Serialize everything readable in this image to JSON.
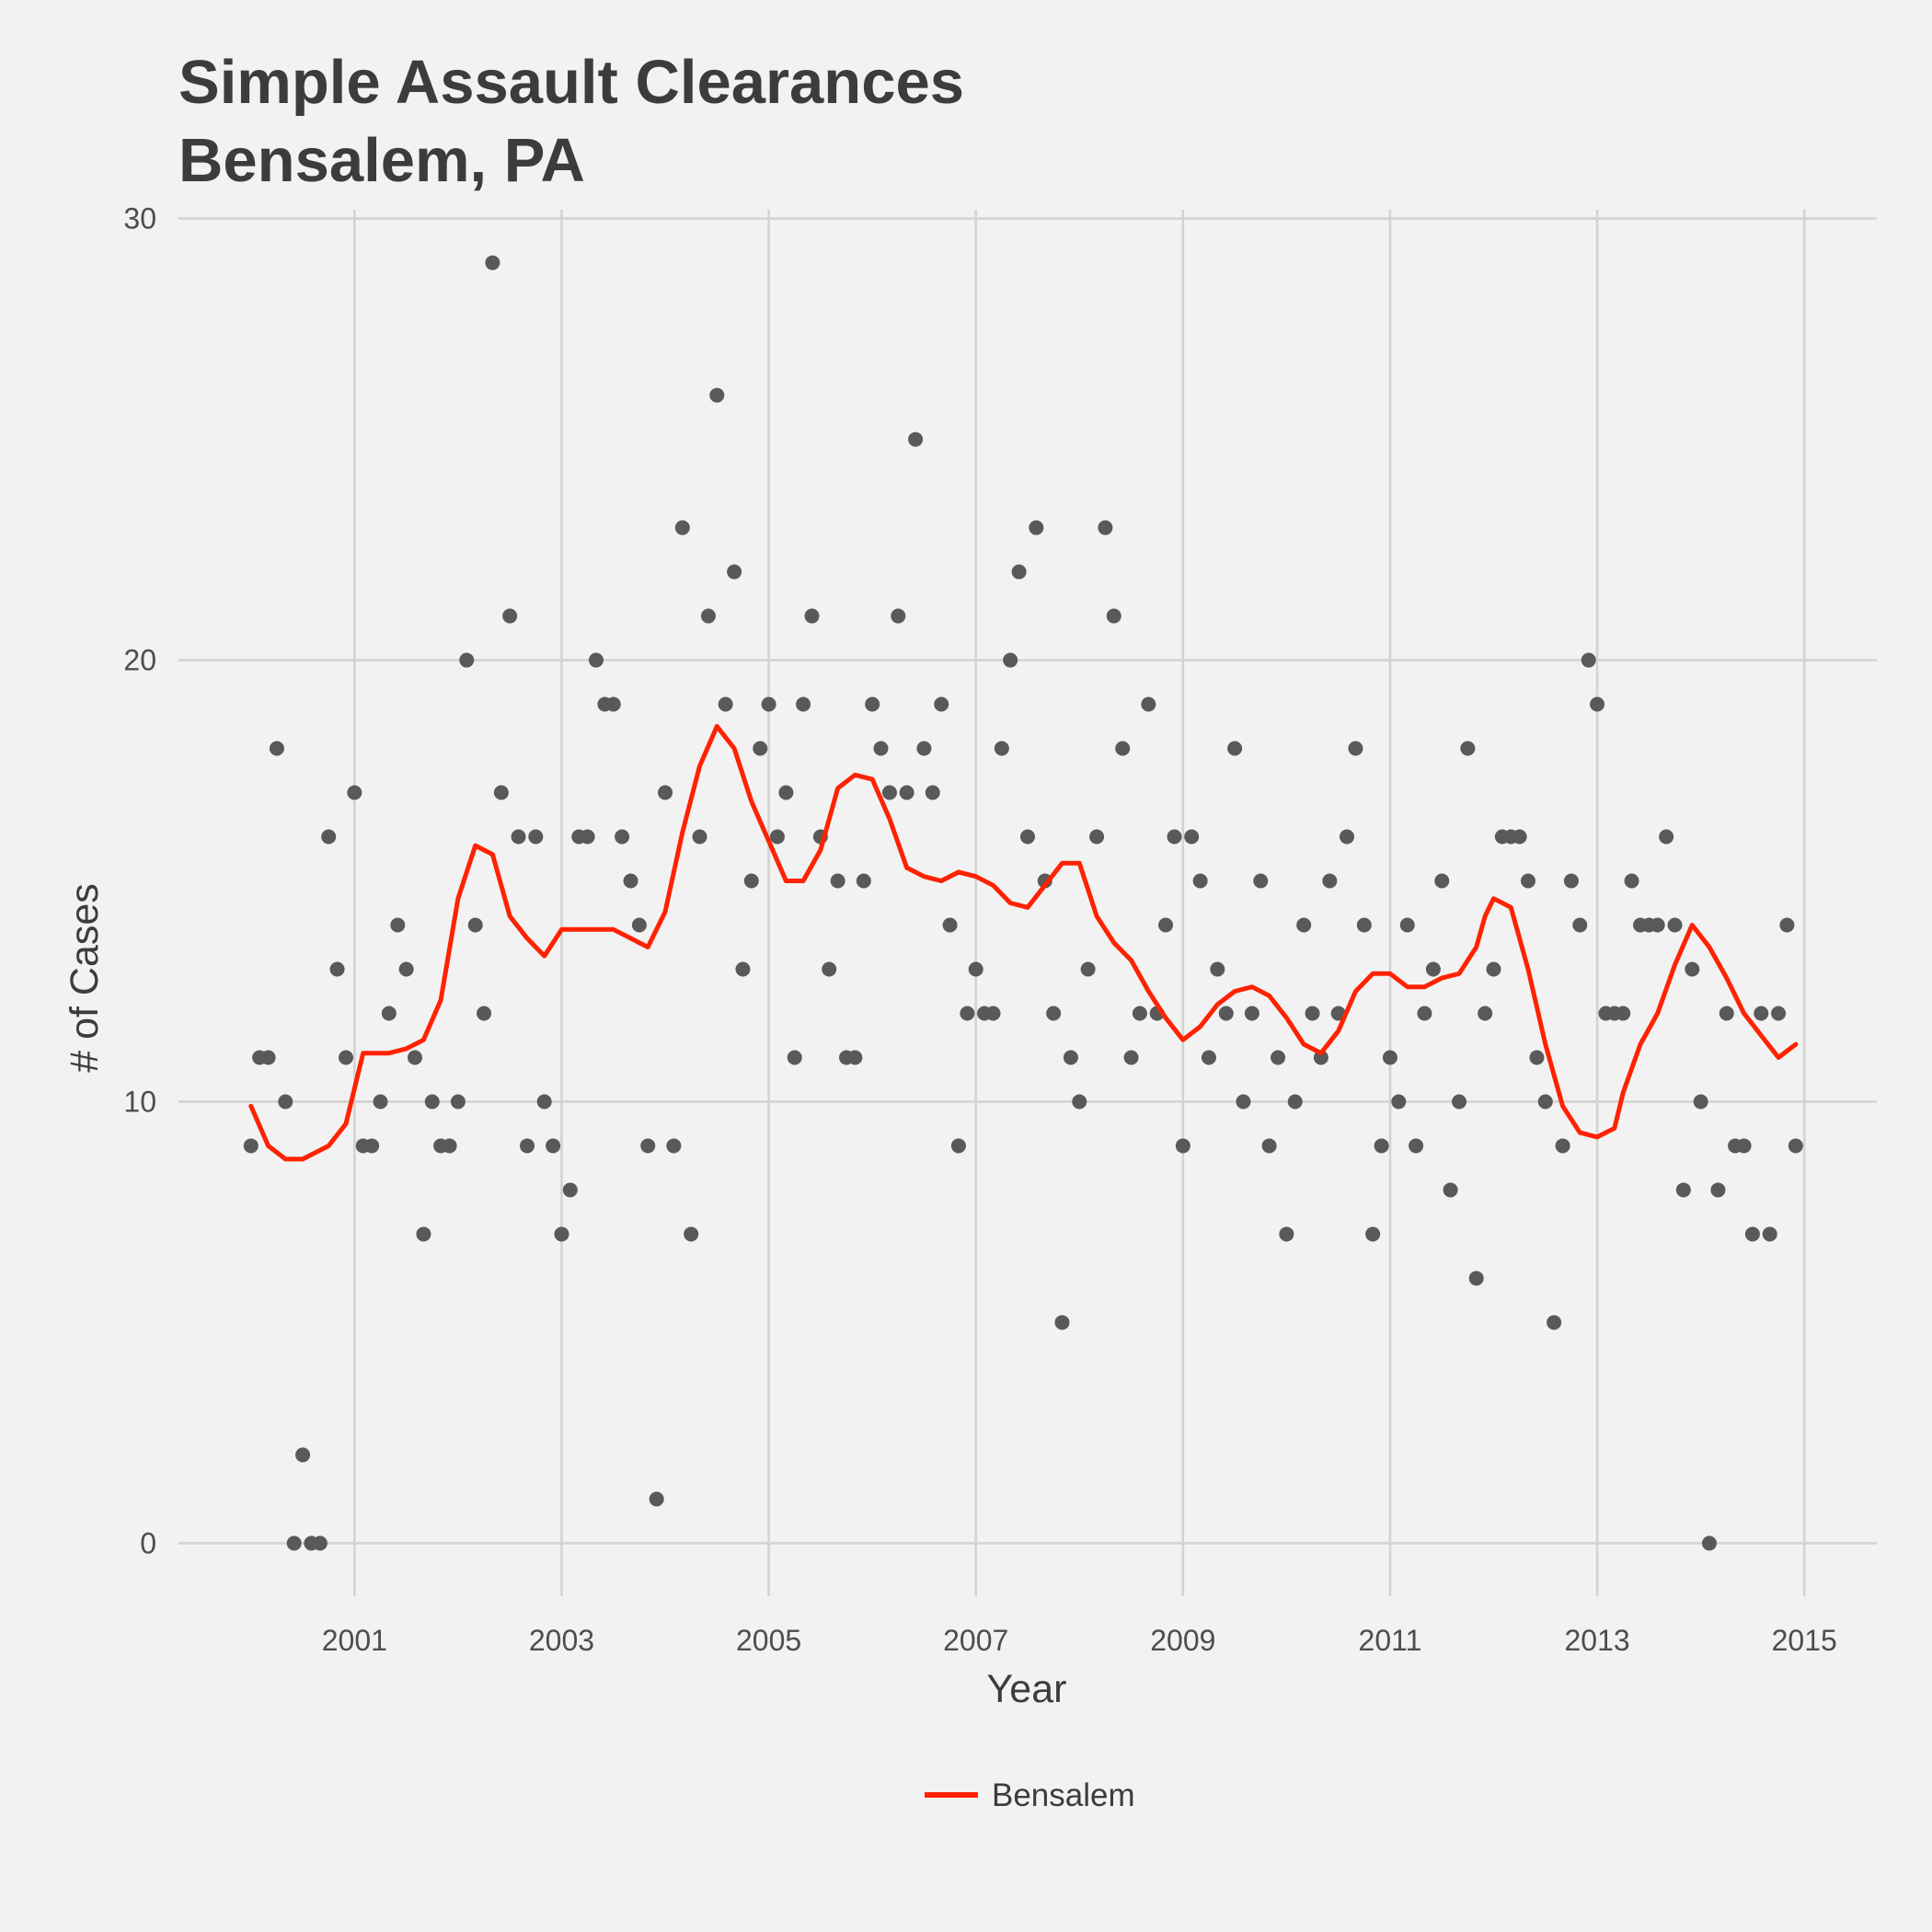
{
  "chart_data": {
    "type": "scatter",
    "title": [
      "Simple Assault Clearances",
      "Bensalem, PA"
    ],
    "xlabel": "Year",
    "ylabel": "# of Cases",
    "xlim": [
      1999.3,
      2015.7
    ],
    "ylim": [
      -1.2,
      30.2
    ],
    "x_ticks": [
      2001,
      2003,
      2005,
      2007,
      2009,
      2011,
      2013,
      2015
    ],
    "y_ticks": [
      0,
      10,
      20,
      30
    ],
    "grid": true,
    "legend": {
      "position": "bottom",
      "entries": [
        "Bensalem"
      ]
    },
    "colors": {
      "points": "#595959",
      "line": "#ff2200",
      "grid": "#d3d3d3",
      "background": "#f2f2f2",
      "text": "#3c3c3c"
    },
    "points": {
      "x": [
        2000.0,
        2000.083,
        2000.167,
        2000.25,
        2000.333,
        2000.417,
        2000.5,
        2000.583,
        2000.667,
        2000.75,
        2000.833,
        2000.917,
        2001.0,
        2001.083,
        2001.167,
        2001.25,
        2001.333,
        2001.417,
        2001.5,
        2001.583,
        2001.667,
        2001.75,
        2001.833,
        2001.917,
        2002.0,
        2002.083,
        2002.167,
        2002.25,
        2002.333,
        2002.417,
        2002.5,
        2002.583,
        2002.667,
        2002.75,
        2002.833,
        2002.917,
        2003.0,
        2003.083,
        2003.167,
        2003.25,
        2003.333,
        2003.417,
        2003.5,
        2003.583,
        2003.667,
        2003.75,
        2003.833,
        2003.917,
        2004.0,
        2004.083,
        2004.167,
        2004.25,
        2004.333,
        2004.417,
        2004.5,
        2004.583,
        2004.667,
        2004.75,
        2004.833,
        2004.917,
        2005.0,
        2005.083,
        2005.167,
        2005.25,
        2005.333,
        2005.417,
        2005.5,
        2005.583,
        2005.667,
        2005.75,
        2005.833,
        2005.917,
        2006.0,
        2006.083,
        2006.167,
        2006.25,
        2006.333,
        2006.417,
        2006.5,
        2006.583,
        2006.667,
        2006.75,
        2006.833,
        2006.917,
        2007.0,
        2007.083,
        2007.167,
        2007.25,
        2007.333,
        2007.417,
        2007.5,
        2007.583,
        2007.667,
        2007.75,
        2007.833,
        2007.917,
        2008.0,
        2008.083,
        2008.167,
        2008.25,
        2008.333,
        2008.417,
        2008.5,
        2008.583,
        2008.667,
        2008.75,
        2008.833,
        2008.917,
        2009.0,
        2009.083,
        2009.167,
        2009.25,
        2009.333,
        2009.417,
        2009.5,
        2009.583,
        2009.667,
        2009.75,
        2009.833,
        2009.917,
        2010.0,
        2010.083,
        2010.167,
        2010.25,
        2010.333,
        2010.417,
        2010.5,
        2010.583,
        2010.667,
        2010.75,
        2010.833,
        2010.917,
        2011.0,
        2011.083,
        2011.167,
        2011.25,
        2011.333,
        2011.417,
        2011.5,
        2011.583,
        2011.667,
        2011.75,
        2011.833,
        2011.917,
        2012.0,
        2012.083,
        2012.167,
        2012.25,
        2012.333,
        2012.417,
        2012.5,
        2012.583,
        2012.667,
        2012.75,
        2012.833,
        2012.917,
        2013.0,
        2013.083,
        2013.167,
        2013.25,
        2013.333,
        2013.417,
        2013.5,
        2013.583,
        2013.667,
        2013.75,
        2013.833,
        2013.917,
        2014.0,
        2014.083,
        2014.167,
        2014.25,
        2014.333,
        2014.417,
        2014.5,
        2014.583,
        2014.667,
        2014.75,
        2014.833,
        2014.917
      ],
      "y": [
        9,
        11,
        11,
        18,
        10,
        0,
        2,
        0,
        0,
        16,
        13,
        11,
        17,
        9,
        9,
        10,
        12,
        14,
        13,
        11,
        7,
        10,
        9,
        9,
        10,
        20,
        14,
        12,
        29,
        17,
        21,
        16,
        9,
        16,
        10,
        9,
        7,
        8,
        16,
        16,
        20,
        19,
        19,
        16,
        15,
        14,
        9,
        1,
        17,
        9,
        23,
        7,
        16,
        21,
        26,
        19,
        22,
        13,
        15,
        18,
        19,
        16,
        17,
        11,
        19,
        21,
        16,
        13,
        15,
        11,
        11,
        15,
        19,
        18,
        17,
        21,
        17,
        25,
        18,
        17,
        19,
        14,
        9,
        12,
        13,
        12,
        12,
        18,
        20,
        22,
        16,
        23,
        15,
        12,
        5,
        11,
        10,
        13,
        16,
        23,
        21,
        18,
        11,
        12,
        19,
        12,
        14,
        16,
        9,
        16,
        15,
        11,
        13,
        12,
        18,
        10,
        12,
        15,
        9,
        11,
        7,
        10,
        14,
        12,
        11,
        15,
        12,
        16,
        18,
        14,
        7,
        9,
        11,
        10,
        14,
        9,
        12,
        13,
        15,
        8,
        10,
        18,
        6,
        12,
        13,
        16,
        16,
        16,
        15,
        11,
        10,
        5,
        9,
        15,
        14,
        20,
        19,
        12,
        12,
        12,
        15,
        14,
        14,
        14,
        16,
        14,
        8,
        13,
        10,
        0,
        8,
        12,
        9,
        9,
        7,
        12,
        7,
        12,
        14,
        9
      ]
    },
    "series": [
      {
        "name": "Bensalem",
        "x": [
          2000.0,
          2000.167,
          2000.333,
          2000.5,
          2000.75,
          2000.917,
          2001.083,
          2001.333,
          2001.5,
          2001.667,
          2001.833,
          2002.0,
          2002.167,
          2002.333,
          2002.5,
          2002.667,
          2002.833,
          2003.0,
          2003.167,
          2003.333,
          2003.5,
          2003.667,
          2003.833,
          2004.0,
          2004.167,
          2004.333,
          2004.5,
          2004.667,
          2004.833,
          2005.0,
          2005.167,
          2005.333,
          2005.5,
          2005.667,
          2005.833,
          2006.0,
          2006.167,
          2006.333,
          2006.5,
          2006.667,
          2006.833,
          2007.0,
          2007.167,
          2007.333,
          2007.5,
          2007.667,
          2007.833,
          2008.0,
          2008.167,
          2008.333,
          2008.5,
          2008.667,
          2008.833,
          2009.0,
          2009.167,
          2009.333,
          2009.5,
          2009.667,
          2009.833,
          2010.0,
          2010.167,
          2010.333,
          2010.5,
          2010.667,
          2010.833,
          2011.0,
          2011.167,
          2011.333,
          2011.5,
          2011.667,
          2011.833,
          2011.917,
          2012.0,
          2012.167,
          2012.333,
          2012.5,
          2012.667,
          2012.833,
          2013.0,
          2013.167,
          2013.25,
          2013.417,
          2013.583,
          2013.75,
          2013.917,
          2014.083,
          2014.25,
          2014.417,
          2014.583,
          2014.75,
          2014.917
        ],
        "y": [
          9.9,
          9.0,
          8.7,
          8.7,
          9.0,
          9.5,
          11.1,
          11.1,
          11.2,
          11.4,
          12.3,
          14.6,
          15.8,
          15.6,
          14.2,
          13.7,
          13.3,
          13.9,
          13.9,
          13.9,
          13.9,
          13.7,
          13.5,
          14.3,
          16.1,
          17.6,
          18.5,
          18.0,
          16.8,
          15.9,
          15.0,
          15.0,
          15.7,
          17.1,
          17.4,
          17.3,
          16.4,
          15.3,
          15.1,
          15.0,
          15.2,
          15.1,
          14.9,
          14.5,
          14.4,
          14.9,
          15.4,
          15.4,
          14.2,
          13.6,
          13.2,
          12.5,
          11.9,
          11.4,
          11.7,
          12.2,
          12.5,
          12.6,
          12.4,
          11.9,
          11.3,
          11.1,
          11.6,
          12.5,
          12.9,
          12.9,
          12.6,
          12.6,
          12.8,
          12.9,
          13.5,
          14.2,
          14.6,
          14.4,
          13.0,
          11.3,
          9.9,
          9.3,
          9.2,
          9.4,
          10.2,
          11.3,
          12.0,
          13.1,
          14.0,
          13.5,
          12.8,
          12.0,
          11.5,
          11.0,
          11.3
        ]
      }
    ]
  }
}
